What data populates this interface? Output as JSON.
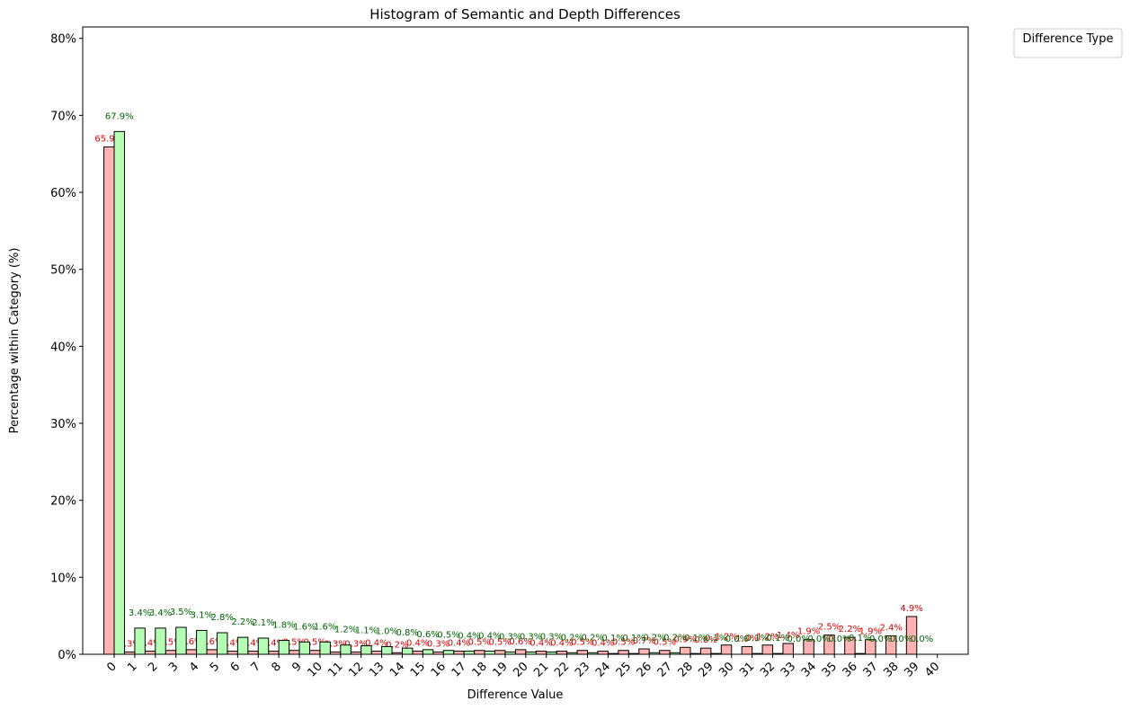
{
  "chart_data": {
    "type": "bar",
    "title": "Histogram of Semantic and Depth Differences",
    "x_label": "Difference Value",
    "y_label": "Percentage within Category (%)",
    "legend_title": "Difference Type",
    "x": [
      0,
      1,
      2,
      3,
      4,
      5,
      6,
      7,
      8,
      9,
      10,
      11,
      12,
      13,
      14,
      15,
      16,
      17,
      18,
      19,
      20,
      21,
      22,
      23,
      24,
      25,
      26,
      27,
      28,
      29,
      30,
      31,
      32,
      33,
      34,
      35,
      36,
      37,
      38,
      39
    ],
    "xlim": [
      -1.53,
      41.5
    ],
    "xticks": [
      0,
      1,
      2,
      3,
      4,
      5,
      6,
      7,
      8,
      9,
      10,
      11,
      12,
      13,
      14,
      15,
      16,
      17,
      18,
      19,
      20,
      21,
      22,
      23,
      24,
      25,
      26,
      27,
      28,
      29,
      30,
      31,
      32,
      33,
      34,
      35,
      36,
      37,
      38,
      39,
      40
    ],
    "ylim": [
      0,
      81.48
    ],
    "yticks": [
      {
        "value": 0,
        "label": "0%"
      },
      {
        "value": 10,
        "label": "10%"
      },
      {
        "value": 20,
        "label": "20%"
      },
      {
        "value": 30,
        "label": "30%"
      },
      {
        "value": 40,
        "label": "40%"
      },
      {
        "value": 50,
        "label": "50%"
      },
      {
        "value": 60,
        "label": "60%"
      },
      {
        "value": 70,
        "label": "70%"
      },
      {
        "value": 80,
        "label": "80%"
      }
    ],
    "series": [
      {
        "color": "#ffb3b3",
        "label_color": "#dd0000",
        "offset": -0.5,
        "values": [
          65.9,
          0.3,
          0.4,
          0.5,
          0.6,
          0.6,
          0.4,
          0.4,
          0.4,
          0.5,
          0.5,
          0.3,
          0.3,
          0.4,
          0.2,
          0.4,
          0.3,
          0.4,
          0.5,
          0.5,
          0.6,
          0.4,
          0.4,
          0.5,
          0.4,
          0.5,
          0.7,
          0.5,
          0.9,
          0.8,
          1.2,
          1.0,
          1.2,
          1.4,
          1.9,
          2.5,
          2.2,
          1.9,
          2.4,
          4.9
        ],
        "value_labels": [
          "65.9%",
          "0.3%",
          "0.4%",
          "0.5%",
          "0.6%",
          "0.6%",
          "0.4%",
          "0.4%",
          "0.4%",
          "0.5%",
          "0.5%",
          "0.3%",
          "0.3%",
          "0.4%",
          "0.2%",
          "0.4%",
          "0.3%",
          "0.4%",
          "0.5%",
          "0.5%",
          "0.6%",
          "0.4%",
          "0.4%",
          "0.5%",
          "0.4%",
          "0.5%",
          "0.7%",
          "0.5%",
          "0.9%",
          "0.8%",
          "1.2%",
          "1.0%",
          "1.2%",
          "1.4%",
          "1.9%",
          "2.5%",
          "2.2%",
          "1.9%",
          "2.4%",
          "4.9%"
        ]
      },
      {
        "color": "#b3ffb3",
        "label_color": "#006400",
        "offset": 0,
        "values": [
          67.9,
          3.4,
          3.4,
          3.5,
          3.1,
          2.8,
          2.2,
          2.1,
          1.8,
          1.6,
          1.6,
          1.2,
          1.1,
          1.0,
          0.8,
          0.6,
          0.5,
          0.4,
          0.4,
          0.3,
          0.3,
          0.3,
          0.2,
          0.2,
          0.1,
          0.1,
          0.2,
          0.2,
          0.1,
          0.1,
          0.0,
          0.1,
          0.1,
          0.0,
          0.0,
          0.0,
          0.1,
          0.0,
          0.0,
          0.0
        ],
        "value_labels": [
          "67.9%",
          "3.4%",
          "3.4%",
          "3.5%",
          "3.1%",
          "2.8%",
          "2.2%",
          "2.1%",
          "1.8%",
          "1.6%",
          "1.6%",
          "1.2%",
          "1.1%",
          "1.0%",
          "0.8%",
          "0.6%",
          "0.5%",
          "0.4%",
          "0.4%",
          "0.3%",
          "0.3%",
          "0.3%",
          "0.2%",
          "0.2%",
          "0.1%",
          "0.1%",
          "0.2%",
          "0.2%",
          "0.1%",
          "0.1%",
          "0.0%",
          "0.1%",
          "0.1%",
          "0.0%",
          "0.0%",
          "0.0%",
          "0.1%",
          "0.0%",
          "0.0%",
          "0.0%"
        ]
      }
    ],
    "bar_width": 0.5
  }
}
